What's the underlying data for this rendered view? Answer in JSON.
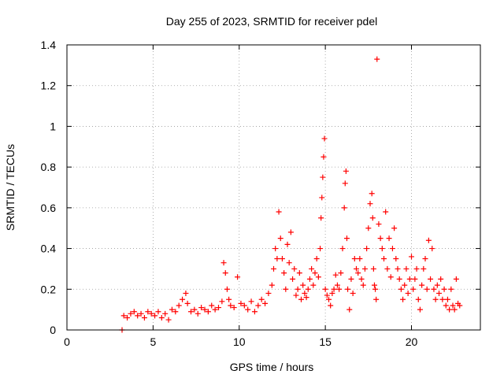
{
  "chart_data": {
    "type": "scatter",
    "title": "Day 255 of 2023, SRMTID for receiver pdel",
    "xlabel": "GPS time / hours",
    "ylabel": "SRMTID / TECUs",
    "xlim": [
      0,
      24
    ],
    "ylim": [
      0,
      1.4
    ],
    "x_ticks": [
      0,
      5,
      10,
      15,
      20
    ],
    "x_tick_labels": [
      "0",
      "5",
      "10",
      "15",
      "20"
    ],
    "y_ticks": [
      0,
      0.2,
      0.4,
      0.6,
      0.8,
      1.0,
      1.2,
      1.4
    ],
    "y_tick_labels": [
      "0",
      "0.2",
      "0.4",
      "0.6",
      "0.8",
      "1",
      "1.2",
      "1.4"
    ],
    "grid": true,
    "marker": "+",
    "series": [
      {
        "name": "pdel",
        "color": "#ff0000",
        "x": [
          3.2,
          3.3,
          3.5,
          3.7,
          3.9,
          4.1,
          4.3,
          4.5,
          4.7,
          4.9,
          5.1,
          5.3,
          5.5,
          5.7,
          5.9,
          6.1,
          6.3,
          6.5,
          6.7,
          6.9,
          7.0,
          7.2,
          7.4,
          7.6,
          7.8,
          8.0,
          8.2,
          8.4,
          8.6,
          8.8,
          9.0,
          9.1,
          9.2,
          9.3,
          9.4,
          9.5,
          9.7,
          9.9,
          10.1,
          10.3,
          10.5,
          10.7,
          10.9,
          11.1,
          11.3,
          11.5,
          11.7,
          11.9,
          12.0,
          12.1,
          12.2,
          12.3,
          12.4,
          12.5,
          12.6,
          12.7,
          12.8,
          12.9,
          13.0,
          13.1,
          13.2,
          13.3,
          13.4,
          13.5,
          13.6,
          13.7,
          13.8,
          13.9,
          14.0,
          14.1,
          14.2,
          14.3,
          14.4,
          14.5,
          14.6,
          14.7,
          14.75,
          14.8,
          14.85,
          14.9,
          14.95,
          15.0,
          15.1,
          15.2,
          15.3,
          15.4,
          15.5,
          15.6,
          15.7,
          15.8,
          15.9,
          16.0,
          16.1,
          16.15,
          16.2,
          16.25,
          16.3,
          16.4,
          16.5,
          16.6,
          16.7,
          16.8,
          16.9,
          17.0,
          17.1,
          17.2,
          17.3,
          17.4,
          17.5,
          17.6,
          17.7,
          17.75,
          17.8,
          17.85,
          17.9,
          17.95,
          18.0,
          18.1,
          18.2,
          18.3,
          18.4,
          18.5,
          18.6,
          18.7,
          18.8,
          18.9,
          19.0,
          19.1,
          19.2,
          19.3,
          19.4,
          19.5,
          19.6,
          19.7,
          19.8,
          19.9,
          20.0,
          20.1,
          20.2,
          20.3,
          20.4,
          20.5,
          20.6,
          20.7,
          20.8,
          20.9,
          21.0,
          21.1,
          21.2,
          21.3,
          21.4,
          21.5,
          21.6,
          21.7,
          21.8,
          21.9,
          22.0,
          22.1,
          22.2,
          22.3,
          22.4,
          22.5,
          22.6,
          22.7,
          22.8
        ],
        "y": [
          0.0,
          0.07,
          0.06,
          0.08,
          0.09,
          0.07,
          0.08,
          0.06,
          0.09,
          0.08,
          0.07,
          0.09,
          0.06,
          0.08,
          0.05,
          0.1,
          0.09,
          0.12,
          0.15,
          0.18,
          0.13,
          0.09,
          0.1,
          0.08,
          0.11,
          0.1,
          0.09,
          0.12,
          0.1,
          0.11,
          0.14,
          0.33,
          0.28,
          0.2,
          0.15,
          0.12,
          0.11,
          0.26,
          0.13,
          0.12,
          0.1,
          0.14,
          0.09,
          0.12,
          0.15,
          0.13,
          0.18,
          0.22,
          0.3,
          0.4,
          0.35,
          0.58,
          0.45,
          0.35,
          0.28,
          0.2,
          0.42,
          0.33,
          0.48,
          0.25,
          0.3,
          0.17,
          0.2,
          0.28,
          0.15,
          0.22,
          0.18,
          0.16,
          0.2,
          0.25,
          0.3,
          0.22,
          0.28,
          0.35,
          0.26,
          0.4,
          0.55,
          0.65,
          0.75,
          0.85,
          0.94,
          0.2,
          0.17,
          0.15,
          0.12,
          0.18,
          0.2,
          0.27,
          0.22,
          0.2,
          0.28,
          0.4,
          0.6,
          0.72,
          0.78,
          0.45,
          0.2,
          0.1,
          0.25,
          0.18,
          0.35,
          0.3,
          0.28,
          0.35,
          0.25,
          0.22,
          0.3,
          0.4,
          0.5,
          0.62,
          0.67,
          0.55,
          0.3,
          0.22,
          0.2,
          0.15,
          1.33,
          0.52,
          0.45,
          0.4,
          0.35,
          0.58,
          0.3,
          0.45,
          0.26,
          0.4,
          0.5,
          0.35,
          0.3,
          0.25,
          0.2,
          0.15,
          0.22,
          0.3,
          0.18,
          0.25,
          0.36,
          0.2,
          0.25,
          0.3,
          0.15,
          0.1,
          0.22,
          0.3,
          0.35,
          0.2,
          0.44,
          0.25,
          0.4,
          0.2,
          0.15,
          0.22,
          0.18,
          0.25,
          0.15,
          0.2,
          0.12,
          0.15,
          0.1,
          0.2,
          0.12,
          0.1,
          0.25,
          0.13,
          0.12
        ]
      }
    ]
  }
}
